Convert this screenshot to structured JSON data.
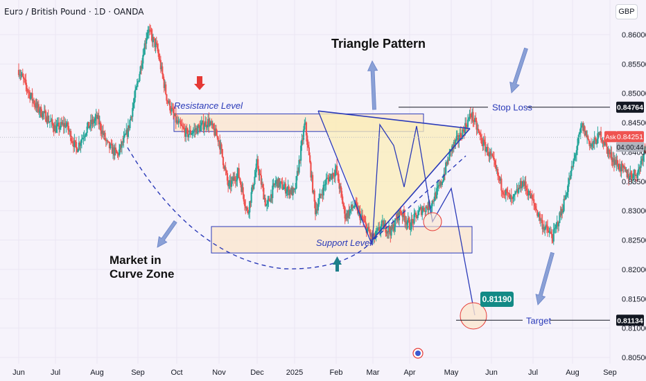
{
  "header": {
    "symbol": "Euro / British Pound · 1D · OANDA",
    "currency": "GBP"
  },
  "colors": {
    "bull": "#26a69a",
    "bear": "#ef5350",
    "pattern": "#2a3ab8",
    "zone_fill": "#fbe6cf",
    "triangle_fill": "#fbeeb8",
    "arrow": "#8aa0d6",
    "marker_red": "#e53935",
    "marker_teal": "#1e7f8a"
  },
  "annotations": {
    "triangle_title": "Triangle Pattern",
    "resistance": "Resistance Level",
    "support": "Support Level",
    "curve_zone": [
      "Market in",
      "Curve Zone"
    ],
    "stop_loss": "Stop Loss",
    "target": "Target",
    "target_callout": "0.81190"
  },
  "price_tags": {
    "stop_loss": "0.84764",
    "ask_label": "Ask",
    "ask_price": "0.84251",
    "countdown": "04:00:44",
    "target": "0.81134"
  },
  "chart_data": {
    "type": "candlestick",
    "x_ticks": [
      "Jun",
      "Jul",
      "Aug",
      "Sep",
      "Oct",
      "Nov",
      "Dec",
      "2025",
      "Feb",
      "Mar",
      "Apr",
      "May",
      "Jun",
      "Jul",
      "Aug",
      "Sep"
    ],
    "y_ticks": [
      "0.86000",
      "0.85500",
      "0.85000",
      "0.84500",
      "0.84000",
      "0.83500",
      "0.83000",
      "0.82500",
      "0.82000",
      "0.81500",
      "0.81000",
      "0.80500"
    ],
    "ylim": [
      0.8035,
      0.8643
    ],
    "price_path": [
      [
        0,
        0.854
      ],
      [
        0.5,
        0.8505
      ],
      [
        1,
        0.8475
      ],
      [
        1.5,
        0.846
      ],
      [
        2,
        0.844
      ],
      [
        2.5,
        0.8448
      ],
      [
        3,
        0.8405
      ],
      [
        3.5,
        0.844
      ],
      [
        4,
        0.8458
      ],
      [
        4.5,
        0.8412
      ],
      [
        5,
        0.8395
      ],
      [
        5.5,
        0.8435
      ],
      [
        6,
        0.852
      ],
      [
        6.5,
        0.861
      ],
      [
        7,
        0.8575
      ],
      [
        7.5,
        0.849
      ],
      [
        8,
        0.845
      ],
      [
        8.5,
        0.843
      ],
      [
        9,
        0.844
      ],
      [
        9.5,
        0.8452
      ],
      [
        10,
        0.842
      ],
      [
        10.5,
        0.834
      ],
      [
        11,
        0.8365
      ],
      [
        11.5,
        0.8295
      ],
      [
        12,
        0.838
      ],
      [
        12.5,
        0.8305
      ],
      [
        13,
        0.835
      ],
      [
        13.5,
        0.8338
      ],
      [
        14,
        0.833
      ],
      [
        14.5,
        0.845
      ],
      [
        15,
        0.83
      ],
      [
        15.5,
        0.835
      ],
      [
        16,
        0.837
      ],
      [
        16.5,
        0.829
      ],
      [
        17,
        0.831
      ],
      [
        17.5,
        0.828
      ],
      [
        18,
        0.825
      ],
      [
        18.5,
        0.8275
      ],
      [
        19,
        0.8265
      ],
      [
        19.5,
        0.83
      ],
      [
        20,
        0.8275
      ],
      [
        20.5,
        0.83
      ],
      [
        21,
        0.831
      ],
      [
        21.5,
        0.8345
      ],
      [
        22,
        0.8405
      ],
      [
        22.5,
        0.843
      ],
      [
        23,
        0.8465
      ],
      [
        23.5,
        0.842
      ],
      [
        24,
        0.839
      ],
      [
        24.5,
        0.834
      ],
      [
        25,
        0.8315
      ],
      [
        25.5,
        0.835
      ],
      [
        26,
        0.8315
      ],
      [
        26.5,
        0.8275
      ],
      [
        27,
        0.8255
      ],
      [
        27.5,
        0.8305
      ],
      [
        28,
        0.8375
      ],
      [
        28.5,
        0.8445
      ],
      [
        29,
        0.841
      ],
      [
        29.5,
        0.843
      ],
      [
        30,
        0.8395
      ],
      [
        30.5,
        0.8375
      ],
      [
        31,
        0.836
      ],
      [
        31.5,
        0.8365
      ],
      [
        32,
        0.8425
      ]
    ],
    "levels": {
      "stop_loss": 0.84764,
      "current_ask": 0.84251,
      "target": 0.81134,
      "projected_target": 0.8119
    },
    "resistance_zone": [
      0.8435,
      0.8465
    ],
    "support_zone": [
      0.8228,
      0.8273
    ]
  }
}
